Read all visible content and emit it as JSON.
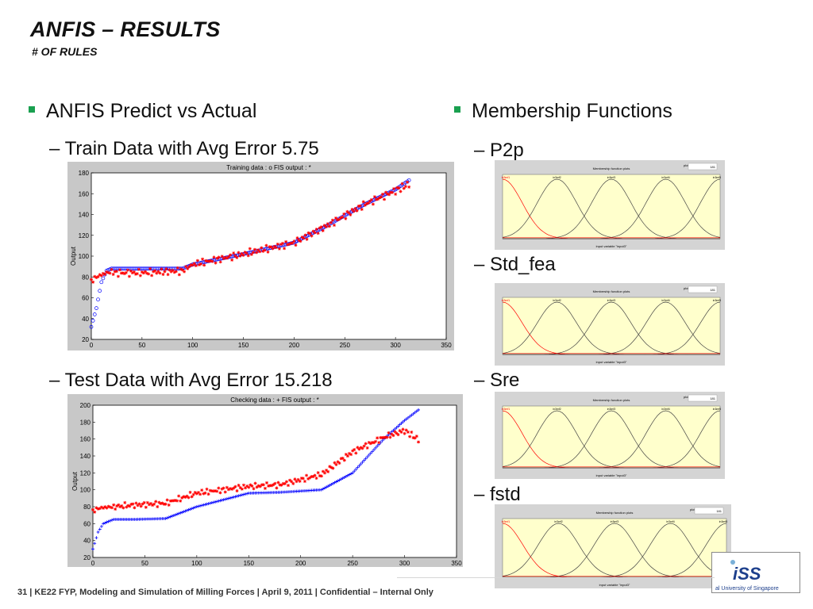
{
  "title": "ANFIS – RESULTS",
  "subtitle": "# OF RULES",
  "left": {
    "bullet": "ANFIS Predict vs Actual",
    "train_label": "– Train Data with Avg Error 5.75",
    "test_label": "– Test Data with Avg Error 15.218"
  },
  "right": {
    "bullet": "Membership Functions",
    "labels": [
      "– P2p",
      "– Std_fea",
      "– Sre",
      "– fstd"
    ],
    "mf_title": "Membership function plots",
    "mf_points_label": "plot points:",
    "mf_points_value": "181",
    "mf_xlabel": "input variable \"input3\"",
    "mf_names": [
      "in3mf1",
      "in3mf2",
      "in3mf3",
      "in3mf4",
      "in3mf5"
    ]
  },
  "footer": "31  |  KE22 FYP, Modeling and Simulation of Milling Forces  |  April 9, 2011  |  Confidential – Internal Only",
  "logo": {
    "text": "iSS",
    "tagline": "al University of Singapore"
  },
  "colors": {
    "accent": "#1aa050",
    "data_red": "#ff0000",
    "fis_blue": "#0000ff",
    "mf_bg": "#ffffcc",
    "mf_red": "#ff0000"
  },
  "chart_data": [
    {
      "type": "scatter",
      "title": "Training data : o   FIS output : *",
      "ylabel": "Output",
      "xlabel": "",
      "xlim": [
        0,
        350
      ],
      "ylim": [
        20,
        180
      ],
      "xticks": [
        0,
        50,
        100,
        150,
        200,
        250,
        300,
        350
      ],
      "yticks": [
        20,
        40,
        60,
        80,
        100,
        120,
        140,
        160,
        180
      ],
      "series": [
        {
          "marker": "o",
          "color": "#0000ff",
          "x": [
            0,
            5,
            10,
            15,
            20,
            25,
            50,
            90,
            100,
            150,
            200,
            230,
            270,
            300,
            315
          ],
          "y": [
            32,
            50,
            75,
            86,
            88,
            88,
            88,
            88,
            92,
            102,
            113,
            128,
            150,
            164,
            174
          ]
        },
        {
          "marker": "*",
          "color": "#ff0000",
          "x": [
            0,
            5,
            10,
            15,
            20,
            25,
            50,
            90,
            100,
            150,
            200,
            230,
            270,
            300,
            315
          ],
          "y": [
            76,
            80,
            82,
            84,
            85,
            84,
            84,
            86,
            92,
            102,
            113,
            128,
            150,
            163,
            170
          ]
        }
      ]
    },
    {
      "type": "scatter",
      "title": "Checking data : +   FIS output : *",
      "ylabel": "Output",
      "xlabel": "",
      "xlim": [
        0,
        350
      ],
      "ylim": [
        20,
        200
      ],
      "xticks": [
        0,
        50,
        100,
        150,
        200,
        250,
        300,
        350
      ],
      "yticks": [
        20,
        40,
        60,
        80,
        100,
        120,
        140,
        160,
        180,
        200
      ],
      "series": [
        {
          "marker": "+",
          "color": "#0000ff",
          "x": [
            0,
            5,
            10,
            20,
            40,
            70,
            100,
            150,
            180,
            220,
            250,
            280,
            300,
            315
          ],
          "y": [
            30,
            50,
            60,
            65,
            65,
            66,
            80,
            96,
            97,
            100,
            120,
            160,
            182,
            196
          ]
        },
        {
          "marker": "*",
          "color": "#ff0000",
          "x": [
            0,
            5,
            10,
            20,
            40,
            70,
            100,
            150,
            180,
            220,
            250,
            280,
            300,
            315
          ],
          "y": [
            75,
            78,
            79,
            80,
            82,
            84,
            96,
            104,
            106,
            118,
            145,
            162,
            170,
            158
          ]
        }
      ]
    }
  ]
}
